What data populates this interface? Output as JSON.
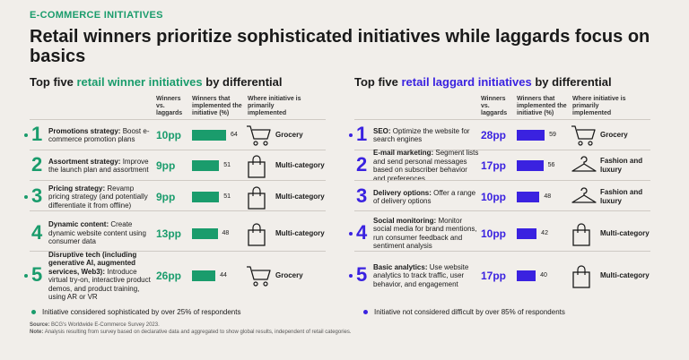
{
  "kicker": "E-COMMERCE INITIATIVES",
  "title": "Retail winners prioritize sophisticated initiatives while laggards focus on basics",
  "colors": {
    "winner": "#1a9c6c",
    "laggard": "#3a22e0",
    "accent": "#1a9c6c"
  },
  "left": {
    "title_prefix": "Top five ",
    "title_highlight": "retail winner initiatives",
    "title_suffix": " by differential",
    "headers": {
      "col1": "Winners vs. laggards",
      "col2": "Winners that implemented the initiative (%)",
      "col3": "Where initiative is primarily implemented"
    },
    "legend": "Initiative considered sophisticated by over 25% of respondents"
  },
  "right": {
    "title_prefix": "Top five ",
    "title_highlight": "retail laggard initiatives",
    "title_suffix": " by differential",
    "headers": {
      "col1": "Winners vs. laggards",
      "col2": "Winners that implemented the initiative (%)",
      "col3": "Where initiative is primarily implemented"
    },
    "legend": "Initiative not considered difficult by over 85% of respondents"
  },
  "footer": {
    "source_label": "Source:",
    "source": "BCG's Worldwide E-Commerce Survey 2023.",
    "note_label": "Note:",
    "note": "Analysis resulting from survey based on declarative data and aggregated to show global results, independent of retail categories."
  },
  "chart_data": [
    {
      "type": "bar",
      "title": "Top five retail winner initiatives by differential",
      "categories": [
        "Promotions strategy",
        "Assortment strategy",
        "Pricing strategy",
        "Dynamic content",
        "Disruptive tech (including generative AI, augmented services, Web3)"
      ],
      "rows": [
        {
          "rank": "1",
          "name": "Promotions strategy:",
          "desc": " Boost e-commerce promotion plans",
          "diff": "10pp",
          "value": 64,
          "where": "Grocery",
          "icon": "cart-icon",
          "dot": true
        },
        {
          "rank": "2",
          "name": "Assortment strategy:",
          "desc": " Improve the launch plan and assortment",
          "diff": "9pp",
          "value": 51,
          "where": "Multi-category",
          "icon": "shopping-bag-icon",
          "dot": false
        },
        {
          "rank": "3",
          "name": "Pricing strategy:",
          "desc": " Revamp pricing strategy (and potentially differentiate it from offline)",
          "diff": "9pp",
          "value": 51,
          "where": "Multi-category",
          "icon": "shopping-bag-icon",
          "dot": true
        },
        {
          "rank": "4",
          "name": "Dynamic content:",
          "desc": " Create dynamic website content using consumer data",
          "diff": "13pp",
          "value": 48,
          "where": "Multi-category",
          "icon": "shopping-bag-icon",
          "dot": false
        },
        {
          "rank": "5",
          "name": "Disruptive tech (including generative AI, augmented services, Web3):",
          "desc": " Introduce virtual try-on, interactive product demos, and product training, using AR or VR",
          "diff": "26pp",
          "value": 44,
          "where": "Grocery",
          "icon": "cart-icon",
          "dot": true
        }
      ]
    },
    {
      "type": "bar",
      "title": "Top five retail laggard initiatives by differential",
      "categories": [
        "SEO",
        "E-mail marketing",
        "Delivery options",
        "Social monitoring",
        "Basic analytics"
      ],
      "rows": [
        {
          "rank": "1",
          "name": "SEO:",
          "desc": " Optimize the website for search engines",
          "diff": "28pp",
          "value": 59,
          "where": "Grocery",
          "icon": "cart-icon",
          "dot": true
        },
        {
          "rank": "2",
          "name": "E-mail marketing:",
          "desc": " Segment lists and send personal messages based on subscriber behavior and preferences",
          "diff": "17pp",
          "value": 56,
          "where": "Fashion and luxury",
          "icon": "hanger-icon",
          "dot": false
        },
        {
          "rank": "3",
          "name": "Delivery options:",
          "desc": " Offer a range of delivery options",
          "diff": "10pp",
          "value": 48,
          "where": "Fashion and luxury",
          "icon": "hanger-icon",
          "dot": false
        },
        {
          "rank": "4",
          "name": "Social monitoring:",
          "desc": " Monitor social media for brand mentions, run consumer feedback and sentiment analysis",
          "diff": "10pp",
          "value": 42,
          "where": "Multi-category",
          "icon": "shopping-bag-icon",
          "dot": true
        },
        {
          "rank": "5",
          "name": "Basic analytics:",
          "desc": " Use website analytics to track traffic, user behavior, and engagement",
          "diff": "17pp",
          "value": 40,
          "where": "Multi-category",
          "icon": "shopping-bag-icon",
          "dot": true
        }
      ]
    }
  ]
}
